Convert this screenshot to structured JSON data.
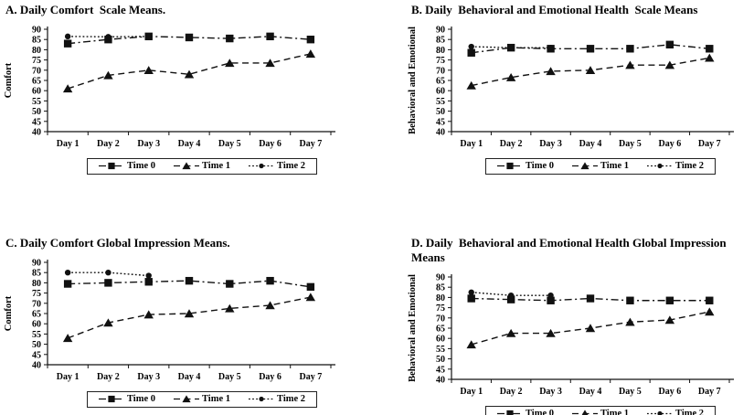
{
  "figure": {
    "background": "#ffffff",
    "ink_color": "#111111",
    "legend_labels": [
      "Time 0",
      "Time 1",
      "Time 2"
    ]
  },
  "chart_data": [
    {
      "panel": "A",
      "type": "line",
      "title": "A. Daily Comfort  Scale Means.",
      "ylabel": "Comfort",
      "xlabel": "",
      "categories": [
        "Day 1",
        "Day 2",
        "Day 3",
        "Day 4",
        "Day 5",
        "Day 6",
        "Day 7"
      ],
      "ylim": [
        40,
        90
      ],
      "ytick_step": 5,
      "grid": false,
      "legend_position": "bottom",
      "series": [
        {
          "name": "Time 0",
          "marker": "square",
          "line_style": "dashdot",
          "values": [
            83,
            85,
            86.5,
            86,
            85.5,
            86.5,
            85
          ]
        },
        {
          "name": "Time 1",
          "marker": "triangle",
          "line_style": "dashed",
          "values": [
            61,
            67.5,
            70,
            68,
            73.5,
            73.5,
            78
          ]
        },
        {
          "name": "Time 2",
          "marker": "circle",
          "line_style": "dotted",
          "values": [
            86.5,
            86.3,
            86.5,
            null,
            null,
            null,
            null
          ]
        }
      ]
    },
    {
      "panel": "B",
      "type": "line",
      "title": "B. Daily  Behavioral and Emotional Health  Scale Means",
      "ylabel": "Behavioral and Emotional",
      "xlabel": "",
      "categories": [
        "Day 1",
        "Day 2",
        "Day 3",
        "Day 4",
        "Day 5",
        "Day 6",
        "Day 7"
      ],
      "ylim": [
        40,
        90
      ],
      "ytick_step": 5,
      "grid": false,
      "legend_position": "bottom",
      "series": [
        {
          "name": "Time 0",
          "marker": "square",
          "line_style": "dashdot",
          "values": [
            78.5,
            81,
            80.5,
            80.5,
            80.5,
            82.5,
            80.5
          ]
        },
        {
          "name": "Time 1",
          "marker": "triangle",
          "line_style": "dashed",
          "values": [
            62.5,
            66.5,
            69.5,
            70,
            72.5,
            72.5,
            76
          ]
        },
        {
          "name": "Time 2",
          "marker": "circle",
          "line_style": "dotted",
          "values": [
            81.5,
            81,
            81,
            null,
            null,
            null,
            null
          ]
        }
      ]
    },
    {
      "panel": "C",
      "type": "line",
      "title": "C. Daily Comfort Global Impression Means.",
      "ylabel": "Comfort",
      "xlabel": "",
      "categories": [
        "Day 1",
        "Day 2",
        "Day 3",
        "Day 4",
        "Day 5",
        "Day 6",
        "Day 7"
      ],
      "ylim": [
        40,
        90
      ],
      "ytick_step": 5,
      "grid": false,
      "legend_position": "bottom",
      "series": [
        {
          "name": "Time 0",
          "marker": "square",
          "line_style": "dashdot",
          "values": [
            79.5,
            80,
            80.5,
            81,
            79.5,
            81,
            78
          ]
        },
        {
          "name": "Time 1",
          "marker": "triangle",
          "line_style": "dashed",
          "values": [
            53,
            60.5,
            64.5,
            65,
            67.5,
            69,
            73
          ]
        },
        {
          "name": "Time 2",
          "marker": "circle",
          "line_style": "dotted",
          "values": [
            85,
            85,
            83.5,
            null,
            null,
            null,
            null
          ]
        }
      ]
    },
    {
      "panel": "D",
      "type": "line",
      "title": "D. Daily  Behavioral and Emotional Health Global Impression Means",
      "ylabel": "Behavioral and Emotional",
      "xlabel": "",
      "categories": [
        "Day 1",
        "Day 2",
        "Day 3",
        "Day 4",
        "Day 5",
        "Day 6",
        "Day 7"
      ],
      "ylim": [
        40,
        90
      ],
      "ytick_step": 5,
      "grid": false,
      "legend_position": "bottom",
      "series": [
        {
          "name": "Time 0",
          "marker": "square",
          "line_style": "dashdot",
          "values": [
            79.5,
            79,
            78.5,
            79.5,
            78.5,
            78.5,
            78.5
          ]
        },
        {
          "name": "Time 1",
          "marker": "triangle",
          "line_style": "dashed",
          "values": [
            57,
            62.5,
            62.5,
            65,
            68,
            69,
            73
          ]
        },
        {
          "name": "Time 2",
          "marker": "circle",
          "line_style": "dotted",
          "values": [
            82.5,
            81,
            81,
            null,
            null,
            null,
            null
          ]
        }
      ]
    }
  ]
}
